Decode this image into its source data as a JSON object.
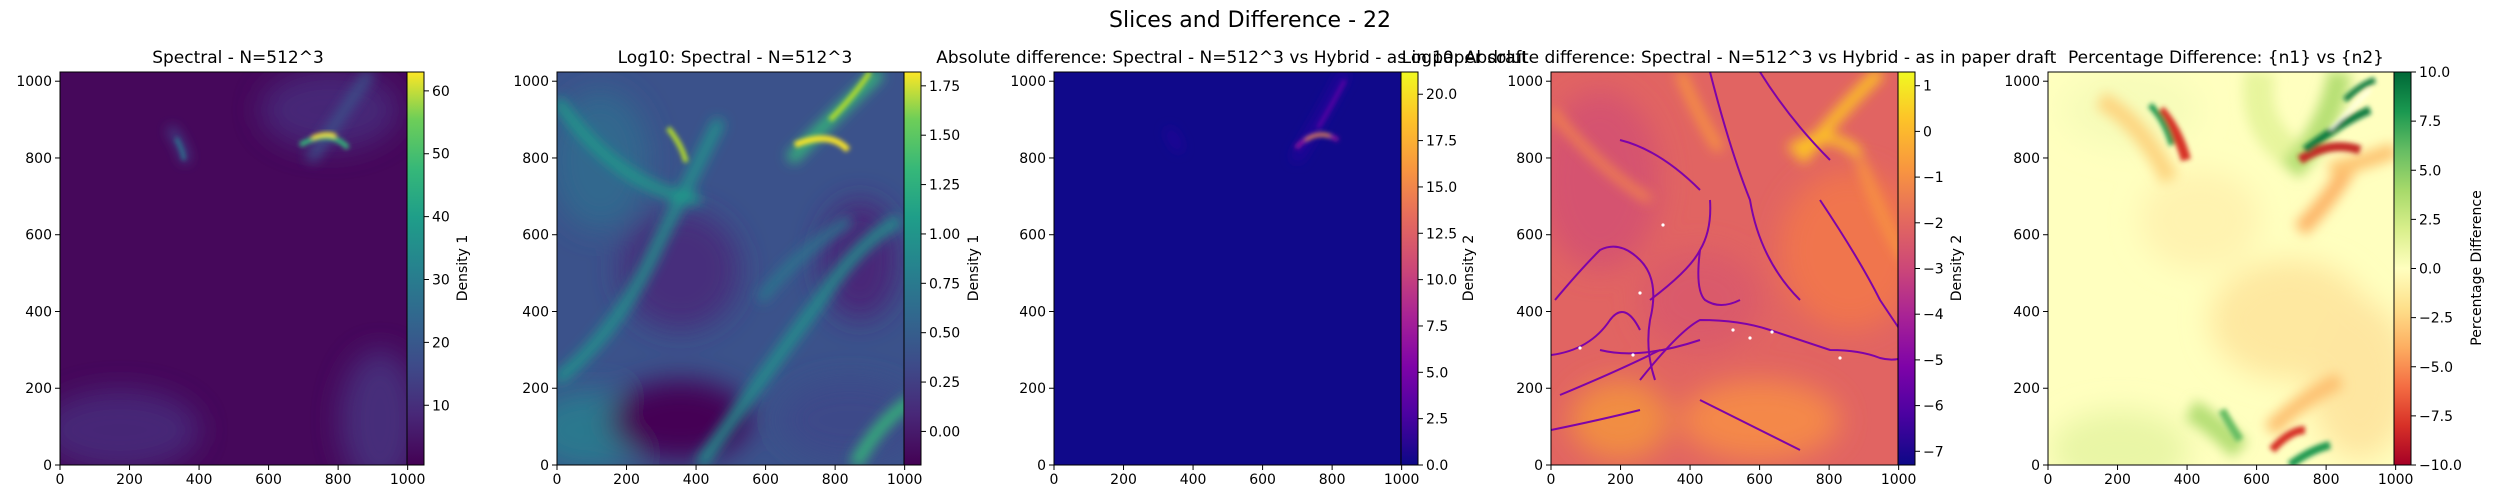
{
  "figure": {
    "suptitle": "Slices and Difference - 22"
  },
  "chart_data": [
    {
      "type": "heatmap",
      "title": "Spectral - N=512^3",
      "colormap": "viridis",
      "x_ticks": [
        "0",
        "200",
        "400",
        "600",
        "800",
        "1000"
      ],
      "y_ticks": [
        "0",
        "200",
        "400",
        "600",
        "800",
        "1000"
      ],
      "xlim": [
        0,
        1024
      ],
      "ylim": [
        0,
        1024
      ],
      "colorbar": {
        "label": "Density 1",
        "range": [
          0.5,
          63
        ],
        "ticks": [
          "10",
          "20",
          "30",
          "40",
          "50",
          "60"
        ],
        "tick_values": [
          10,
          20,
          30,
          40,
          50,
          60
        ]
      },
      "features": [
        {
          "x": 800,
          "y": 838,
          "value": 63,
          "description": "bright curved filament"
        },
        {
          "x": 360,
          "y": 840,
          "value": 18,
          "description": "faint filament"
        }
      ]
    },
    {
      "type": "heatmap",
      "title": "Log10: Spectral - N=512^3",
      "colormap": "viridis",
      "x_ticks": [
        "0",
        "200",
        "400",
        "600",
        "800",
        "1000"
      ],
      "y_ticks": [
        "0",
        "200",
        "400",
        "600",
        "800",
        "1000"
      ],
      "xlim": [
        0,
        1024
      ],
      "ylim": [
        0,
        1024
      ],
      "colorbar": {
        "label": "Density 1",
        "range": [
          -0.17,
          1.82
        ],
        "ticks": [
          "0.00",
          "0.25",
          "0.50",
          "0.75",
          "1.00",
          "1.25",
          "1.50",
          "1.75"
        ],
        "tick_values": [
          0,
          0.25,
          0.5,
          0.75,
          1.0,
          1.25,
          1.5,
          1.75
        ]
      }
    },
    {
      "type": "heatmap",
      "title": "Absolute difference: Spectral - N=512^3 vs Hybrid - as in paper draft",
      "colormap": "plasma",
      "x_ticks": [
        "0",
        "200",
        "400",
        "600",
        "800",
        "1000"
      ],
      "y_ticks": [
        "0",
        "200",
        "400",
        "600",
        "800",
        "1000"
      ],
      "xlim": [
        0,
        1024
      ],
      "ylim": [
        0,
        1024
      ],
      "colorbar": {
        "label": "Density 2",
        "range": [
          0,
          21.2
        ],
        "ticks": [
          "0.0",
          "2.5",
          "5.0",
          "7.5",
          "10.0",
          "12.5",
          "15.0",
          "17.5",
          "20.0"
        ],
        "tick_values": [
          0,
          2.5,
          5,
          7.5,
          10,
          12.5,
          15,
          17.5,
          20
        ]
      }
    },
    {
      "type": "heatmap",
      "title": "Log10: Absolute difference: Spectral - N=512^3 vs Hybrid - as in paper draft",
      "colormap": "plasma",
      "x_ticks": [
        "0",
        "200",
        "400",
        "600",
        "800",
        "1000"
      ],
      "y_ticks": [
        "0",
        "200",
        "400",
        "600",
        "800",
        "1000"
      ],
      "xlim": [
        0,
        1024
      ],
      "ylim": [
        0,
        1024
      ],
      "colorbar": {
        "label": "Density 2",
        "range": [
          -7.3,
          1.3
        ],
        "ticks": [
          "−7",
          "−6",
          "−5",
          "−4",
          "−3",
          "−2",
          "−1",
          "0",
          "1"
        ],
        "tick_values": [
          -7,
          -6,
          -5,
          -4,
          -3,
          -2,
          -1,
          0,
          1
        ]
      }
    },
    {
      "type": "heatmap",
      "title": "Percentage Difference: {n1} vs {n2}",
      "colormap": "RdYlGn",
      "x_ticks": [
        "0",
        "200",
        "400",
        "600",
        "800",
        "1000"
      ],
      "y_ticks": [
        "0",
        "200",
        "400",
        "600",
        "800",
        "1000"
      ],
      "xlim": [
        0,
        1024
      ],
      "ylim": [
        0,
        1024
      ],
      "colorbar": {
        "label": "Percentage Difference",
        "range": [
          -10,
          10
        ],
        "ticks": [
          "−10.0",
          "−7.5",
          "−5.0",
          "−2.5",
          "0.0",
          "2.5",
          "5.0",
          "7.5",
          "10.0"
        ],
        "tick_values": [
          -10,
          -7.5,
          -5,
          -2.5,
          0,
          2.5,
          5,
          7.5,
          10
        ]
      }
    }
  ]
}
